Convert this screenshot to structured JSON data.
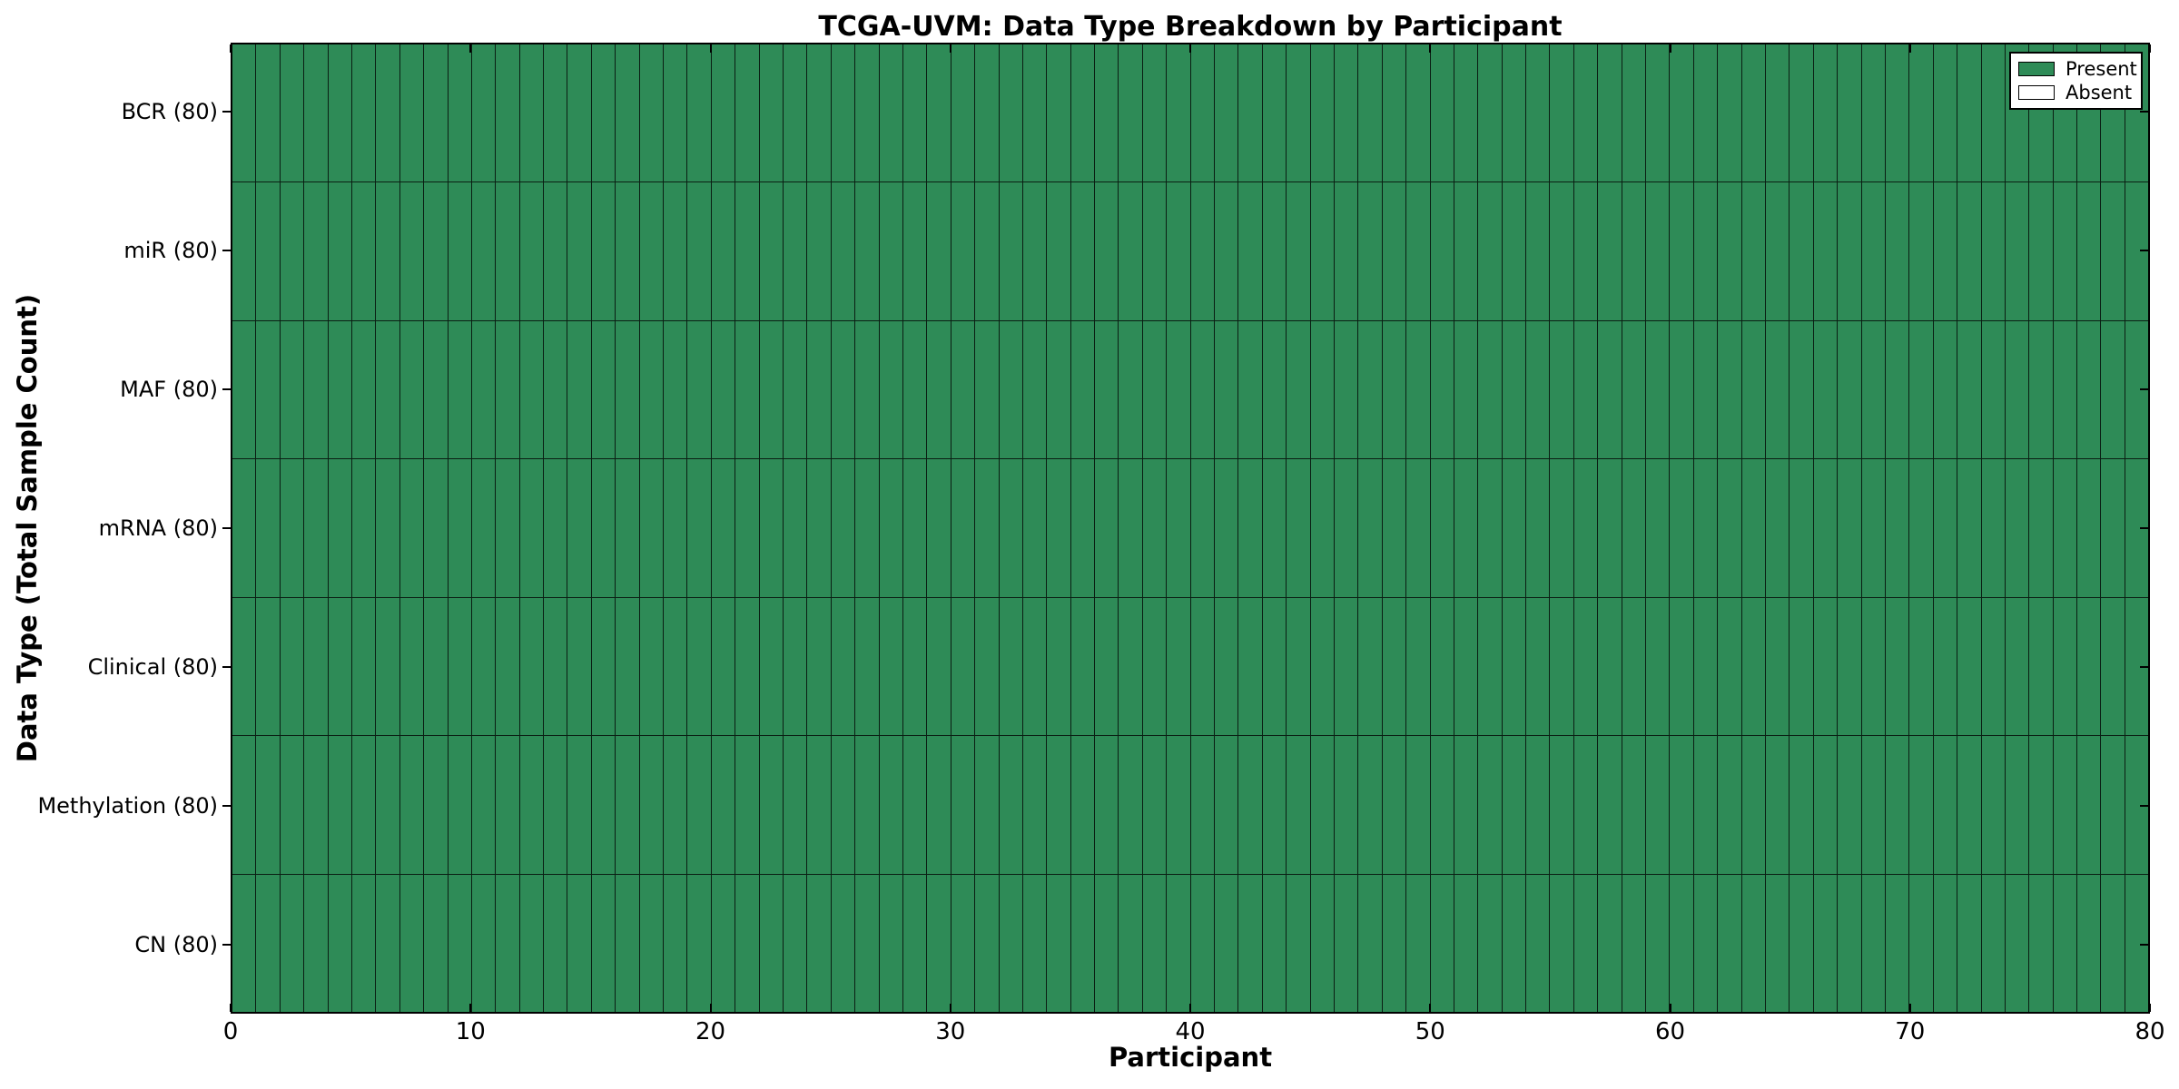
{
  "title": "TCGA-UVM: Data Type Breakdown by Participant",
  "colors": {
    "present": "#2e8b57",
    "absent": "#ffffff",
    "cell_border": "rgba(0,0,0,0.78)",
    "spine": "#000000",
    "background": "#ffffff",
    "text": "#000000"
  },
  "legend": {
    "items": [
      {
        "label": "Present",
        "color": "#2e8b57"
      },
      {
        "label": "Absent",
        "color": "#ffffff"
      }
    ]
  },
  "chart_data": {
    "type": "heatmap",
    "title": "TCGA-UVM: Data Type Breakdown by Participant",
    "xlabel": "Participant",
    "ylabel": "Data Type (Total Sample Count)",
    "x_range": [
      0,
      80
    ],
    "x_ticks": [
      0,
      10,
      20,
      30,
      40,
      50,
      60,
      70,
      80
    ],
    "n_participants": 80,
    "rows": [
      {
        "label": "BCR (80)",
        "data_type": "BCR",
        "total_samples": 80,
        "present_count": 80,
        "absent_count": 0
      },
      {
        "label": "miR (80)",
        "data_type": "miR",
        "total_samples": 80,
        "present_count": 80,
        "absent_count": 0
      },
      {
        "label": "MAF (80)",
        "data_type": "MAF",
        "total_samples": 80,
        "present_count": 80,
        "absent_count": 0
      },
      {
        "label": "mRNA (80)",
        "data_type": "mRNA",
        "total_samples": 80,
        "present_count": 80,
        "absent_count": 0
      },
      {
        "label": "Clinical (80)",
        "data_type": "Clinical",
        "total_samples": 80,
        "present_count": 80,
        "absent_count": 0
      },
      {
        "label": "Methylation (80)",
        "data_type": "Methylation",
        "total_samples": 80,
        "present_count": 80,
        "absent_count": 0
      },
      {
        "label": "CN (80)",
        "data_type": "CN",
        "total_samples": 80,
        "present_count": 80,
        "absent_count": 0
      }
    ],
    "cell_values": {
      "present": 1,
      "absent": 0
    },
    "all_cells_present": true,
    "legend_entries": [
      "Present",
      "Absent"
    ],
    "legend_position": "upper right",
    "grid": "cell borders on every participant column and data-type row"
  }
}
